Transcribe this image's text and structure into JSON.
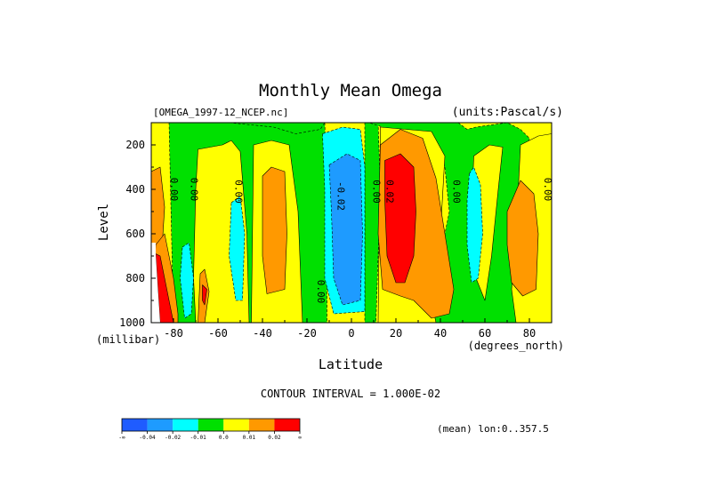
{
  "chart_data": {
    "type": "heatmap",
    "title": "Monthly Mean Omega",
    "dataset_label": "[OMEGA_1997-12_NCEP.nc]",
    "units_label": "(units:Pascal/s)",
    "xlabel": "Latitude",
    "x_units": "(degrees_north)",
    "ylabel": "Level",
    "y_units": "(millibar)",
    "xlim": [
      -90,
      90
    ],
    "ylim": [
      1000,
      100
    ],
    "x_ticks": [
      {
        "value": -80,
        "label": "-80"
      },
      {
        "value": -60,
        "label": "-60"
      },
      {
        "value": -40,
        "label": "-40"
      },
      {
        "value": -20,
        "label": "-20"
      },
      {
        "value": 0,
        "label": "0"
      },
      {
        "value": 20,
        "label": "20"
      },
      {
        "value": 40,
        "label": "40"
      },
      {
        "value": 60,
        "label": "60"
      },
      {
        "value": 80,
        "label": "80"
      }
    ],
    "y_ticks": [
      {
        "value": 200,
        "label": "200"
      },
      {
        "value": 400,
        "label": "400"
      },
      {
        "value": 600,
        "label": "600"
      },
      {
        "value": 800,
        "label": "800"
      },
      {
        "value": 1000,
        "label": "1000"
      }
    ],
    "contour_interval_text": "CONTOUR INTERVAL = 1.000E-02",
    "subset_text": "(mean) lon:0..357.5",
    "colorbar": {
      "colors": [
        "#1f5cff",
        "#1e9bff",
        "#00ffff",
        "#00e000",
        "#ffff00",
        "#ff9900",
        "#ff0000"
      ],
      "labels": [
        "-∞",
        "-0.04",
        "-0.02",
        "-0.01",
        "0.0",
        "0.01",
        "0.02",
        "∞"
      ]
    },
    "contour_labels": [
      {
        "text": "0.00",
        "x": -80,
        "y": 400
      },
      {
        "text": "0.00",
        "x": -71,
        "y": 400
      },
      {
        "text": "0.00",
        "x": -51,
        "y": 410
      },
      {
        "text": "-0.02",
        "x": -5,
        "y": 430
      },
      {
        "text": "0.00",
        "x": -14,
        "y": 860
      },
      {
        "text": "0.00",
        "x": 11,
        "y": 410
      },
      {
        "text": "0.02",
        "x": 17,
        "y": 410
      },
      {
        "text": "0.00",
        "x": 47,
        "y": 410
      },
      {
        "text": "0.00",
        "x": 88,
        "y": 400
      }
    ],
    "regions": [
      {
        "level": 0.0,
        "color": "#ffff00",
        "poly": [
          [
            -90,
            100
          ],
          [
            90,
            100
          ],
          [
            90,
            1000
          ],
          [
            -90,
            1000
          ]
        ]
      },
      {
        "level": -0.01,
        "color": "#00e000",
        "poly": [
          [
            -82,
            100
          ],
          [
            -12,
            100
          ],
          [
            -11,
            400
          ],
          [
            -11,
            700
          ],
          [
            -11,
            1000
          ],
          [
            -80,
            1000
          ]
        ]
      },
      {
        "level": -0.01,
        "color": "#00e000",
        "poly": [
          [
            -55,
            100
          ],
          [
            -35,
            120
          ],
          [
            -25,
            150
          ],
          [
            -14,
            130
          ],
          [
            -12,
            100
          ]
        ]
      },
      {
        "level": 0.0,
        "color": "#ffff00",
        "poly": [
          [
            -69,
            220
          ],
          [
            -58,
            200
          ],
          [
            -54,
            180
          ],
          [
            -50,
            230
          ],
          [
            -47,
            600
          ],
          [
            -46,
            1000
          ],
          [
            -70,
            1000
          ],
          [
            -71,
            800
          ],
          [
            -70,
            400
          ]
        ]
      },
      {
        "level": 0.0,
        "color": "#ffff00",
        "poly": [
          [
            -44,
            200
          ],
          [
            -36,
            180
          ],
          [
            -28,
            200
          ],
          [
            -24,
            500
          ],
          [
            -22,
            1000
          ],
          [
            -45,
            1000
          ]
        ]
      },
      {
        "level": 0.01,
        "color": "#ff9900",
        "poly": [
          [
            -40,
            340
          ],
          [
            -36,
            300
          ],
          [
            -30,
            320
          ],
          [
            -29,
            600
          ],
          [
            -30,
            850
          ],
          [
            -38,
            870
          ],
          [
            -40,
            700
          ]
        ]
      },
      {
        "level": -0.02,
        "color": "#00ffff",
        "poly": [
          [
            -54,
            460
          ],
          [
            -50,
            430
          ],
          [
            -48,
            600
          ],
          [
            -49,
            900
          ],
          [
            -52,
            900
          ],
          [
            -55,
            700
          ]
        ]
      },
      {
        "level": -0.02,
        "color": "#00ffff",
        "poly": [
          [
            -76,
            660
          ],
          [
            -73,
            640
          ],
          [
            -71,
            800
          ],
          [
            -72,
            960
          ],
          [
            -75,
            980
          ],
          [
            -77,
            800
          ]
        ]
      },
      {
        "level": -0.01,
        "color": "#00e000",
        "poly": [
          [
            6,
            100
          ],
          [
            12,
            100
          ],
          [
            13,
            400
          ],
          [
            12,
            700
          ],
          [
            11,
            1000
          ],
          [
            6,
            1000
          ]
        ]
      },
      {
        "level": -0.01,
        "color": "#00e000",
        "poly": [
          [
            8,
            100
          ],
          [
            48,
            100
          ],
          [
            52,
            130
          ],
          [
            56,
            120
          ],
          [
            70,
            100
          ],
          [
            76,
            130
          ],
          [
            80,
            170
          ],
          [
            78,
            350
          ],
          [
            74,
            600
          ],
          [
            72,
            800
          ],
          [
            74,
            950
          ],
          [
            76,
            1000
          ],
          [
            36,
            1000
          ],
          [
            34,
            900
          ],
          [
            40,
            700
          ],
          [
            44,
            500
          ],
          [
            42,
            300
          ],
          [
            38,
            200
          ]
        ]
      },
      {
        "level": 0.0,
        "color": "#ffff00",
        "poly": [
          [
            13,
            120
          ],
          [
            36,
            140
          ],
          [
            42,
            250
          ],
          [
            40,
            600
          ],
          [
            36,
            900
          ],
          [
            38,
            1000
          ],
          [
            12,
            1000
          ]
        ]
      },
      {
        "level": 0.0,
        "color": "#ffff00",
        "poly": [
          [
            55,
            250
          ],
          [
            62,
            200
          ],
          [
            68,
            210
          ],
          [
            66,
            400
          ],
          [
            63,
            700
          ],
          [
            60,
            900
          ],
          [
            56,
            800
          ],
          [
            54,
            500
          ]
        ]
      },
      {
        "level": 0.0,
        "color": "#ffff00",
        "poly": [
          [
            76,
            200
          ],
          [
            84,
            160
          ],
          [
            90,
            150
          ],
          [
            90,
            1000
          ],
          [
            74,
            1000
          ],
          [
            72,
            850
          ],
          [
            74,
            600
          ]
        ]
      },
      {
        "level": -0.03,
        "color": "#00ffff",
        "poly": [
          [
            -13,
            150
          ],
          [
            -4,
            120
          ],
          [
            4,
            130
          ],
          [
            6,
            300
          ],
          [
            6,
            700
          ],
          [
            6,
            950
          ],
          [
            -8,
            960
          ],
          [
            -12,
            800
          ],
          [
            -12,
            400
          ]
        ]
      },
      {
        "level": -0.04,
        "color": "#1e9bff",
        "poly": [
          [
            -10,
            290
          ],
          [
            -2,
            240
          ],
          [
            4,
            270
          ],
          [
            5,
            600
          ],
          [
            4,
            900
          ],
          [
            -4,
            920
          ],
          [
            -8,
            800
          ],
          [
            -9,
            500
          ]
        ]
      },
      {
        "level": 0.01,
        "color": "#ff9900",
        "poly": [
          [
            13,
            200
          ],
          [
            22,
            130
          ],
          [
            32,
            170
          ],
          [
            38,
            350
          ],
          [
            42,
            600
          ],
          [
            46,
            850
          ],
          [
            44,
            960
          ],
          [
            36,
            980
          ],
          [
            28,
            900
          ],
          [
            22,
            880
          ],
          [
            14,
            850
          ],
          [
            12,
            600
          ]
        ]
      },
      {
        "level": 0.02,
        "color": "#ff0000",
        "poly": [
          [
            15,
            270
          ],
          [
            22,
            240
          ],
          [
            28,
            300
          ],
          [
            29,
            500
          ],
          [
            28,
            700
          ],
          [
            24,
            820
          ],
          [
            20,
            820
          ],
          [
            16,
            700
          ],
          [
            15,
            450
          ]
        ]
      },
      {
        "level": -0.02,
        "color": "#00ffff",
        "poly": [
          [
            53,
            330
          ],
          [
            55,
            300
          ],
          [
            58,
            380
          ],
          [
            59,
            600
          ],
          [
            57,
            800
          ],
          [
            54,
            820
          ],
          [
            52,
            650
          ],
          [
            52,
            450
          ]
        ]
      },
      {
        "level": 0.01,
        "color": "#ff9900",
        "poly": [
          [
            70,
            500
          ],
          [
            76,
            360
          ],
          [
            82,
            420
          ],
          [
            84,
            600
          ],
          [
            83,
            850
          ],
          [
            77,
            880
          ],
          [
            72,
            820
          ],
          [
            70,
            650
          ]
        ]
      },
      {
        "level": 0.01,
        "color": "#ff9900",
        "poly": [
          [
            -90,
            320
          ],
          [
            -86,
            300
          ],
          [
            -84,
            480
          ],
          [
            -85,
            640
          ],
          [
            -88,
            650
          ],
          [
            -90,
            640
          ]
        ]
      },
      {
        "level": 0.01,
        "color": "#ff9900",
        "poly": [
          [
            -88,
            650
          ],
          [
            -84,
            600
          ],
          [
            -80,
            800
          ],
          [
            -78,
            960
          ],
          [
            -78,
            1000
          ],
          [
            -90,
            1000
          ]
        ]
      },
      {
        "level": 0.02,
        "color": "#ff0000",
        "poly": [
          [
            -88,
            690
          ],
          [
            -86,
            700
          ],
          [
            -84,
            800
          ],
          [
            -82,
            900
          ],
          [
            -80,
            1000
          ],
          [
            -86,
            1000
          ],
          [
            -87,
            850
          ]
        ]
      },
      {
        "level": 0.01,
        "color": "#ff9900",
        "poly": [
          [
            -68,
            780
          ],
          [
            -66,
            760
          ],
          [
            -64,
            860
          ],
          [
            -66,
            1000
          ],
          [
            -69,
            1000
          ]
        ]
      },
      {
        "level": 0.02,
        "color": "#ff0000",
        "poly": [
          [
            -67,
            830
          ],
          [
            -65,
            850
          ],
          [
            -66,
            920
          ],
          [
            -67,
            900
          ]
        ]
      }
    ],
    "missing": [
      {
        "poly": [
          [
            -90,
            640
          ],
          [
            -88,
            640
          ],
          [
            -88,
            690
          ],
          [
            -87,
            850
          ],
          [
            -86,
            1000
          ],
          [
            -90,
            1000
          ]
        ]
      }
    ]
  }
}
